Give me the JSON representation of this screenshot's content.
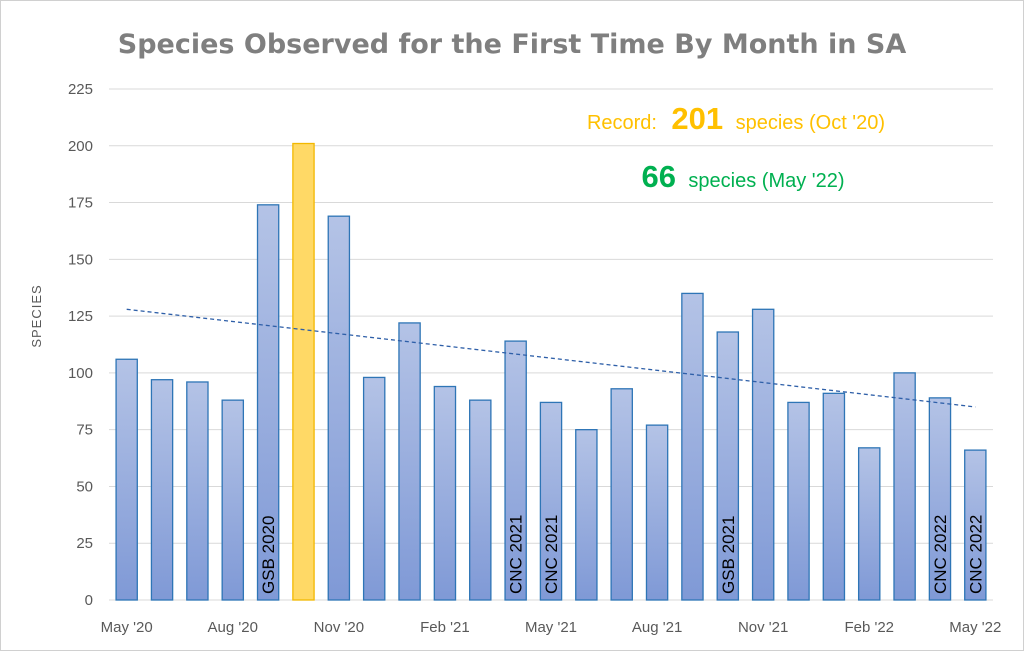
{
  "chart_data": {
    "type": "bar",
    "title": "Species Observed for the First Time By Month in SA",
    "ylabel": "SPECIES",
    "xlabel": "",
    "ylim": [
      0,
      225
    ],
    "yticks": [
      0,
      25,
      50,
      75,
      100,
      125,
      150,
      175,
      200,
      225
    ],
    "grid": true,
    "categories": [
      "May '20",
      "Jun '20",
      "Jul '20",
      "Aug '20",
      "Sep '20",
      "Oct '20",
      "Nov '20",
      "Dec '20",
      "Jan '21",
      "Feb '21",
      "Mar '21",
      "Apr '21",
      "May '21",
      "Jun '21",
      "Jul '21",
      "Aug '21",
      "Sep '21",
      "Oct '21",
      "Nov '21",
      "Dec '21",
      "Jan '22",
      "Feb '22",
      "Mar '22",
      "Apr '22",
      "May '22"
    ],
    "values": [
      106,
      97,
      96,
      88,
      174,
      201,
      169,
      98,
      122,
      94,
      88,
      114,
      87,
      75,
      93,
      77,
      135,
      118,
      128,
      87,
      91,
      67,
      100,
      89,
      66
    ],
    "xtick_labels": [
      {
        "index": 0,
        "label": "May '20"
      },
      {
        "index": 3,
        "label": "Aug '20"
      },
      {
        "index": 6,
        "label": "Nov '20"
      },
      {
        "index": 9,
        "label": "Feb '21"
      },
      {
        "index": 12,
        "label": "May '21"
      },
      {
        "index": 15,
        "label": "Aug '21"
      },
      {
        "index": 18,
        "label": "Nov '21"
      },
      {
        "index": 21,
        "label": "Feb '22"
      },
      {
        "index": 24,
        "label": "May '22"
      }
    ],
    "highlight_index": 5,
    "bar_annotations": [
      {
        "index": 4,
        "label": "GSB 2020"
      },
      {
        "index": 11,
        "label": "CNC 2021"
      },
      {
        "index": 12,
        "label": "CNC 2021"
      },
      {
        "index": 17,
        "label": "GSB 2021"
      },
      {
        "index": 23,
        "label": "CNC 2022"
      },
      {
        "index": 24,
        "label": "CNC 2022"
      }
    ],
    "trendline": {
      "style": "dashed",
      "start_value": 128,
      "end_value": 85
    },
    "record": {
      "prefix": "Record:",
      "value": "201",
      "suffix": "species (Oct '20)"
    },
    "current": {
      "value": "66",
      "suffix": "species (May '22)"
    },
    "colors": {
      "bar_fill_top": "#b4c3e6",
      "bar_fill_bottom": "#7f99d6",
      "bar_stroke": "#2e75b6",
      "highlight_fill": "#ffd966",
      "highlight_stroke": "#f2b800",
      "trend": "#2e5fa8",
      "record": "#ffc000",
      "current": "#00b050",
      "grid": "#d9d9d9"
    }
  }
}
